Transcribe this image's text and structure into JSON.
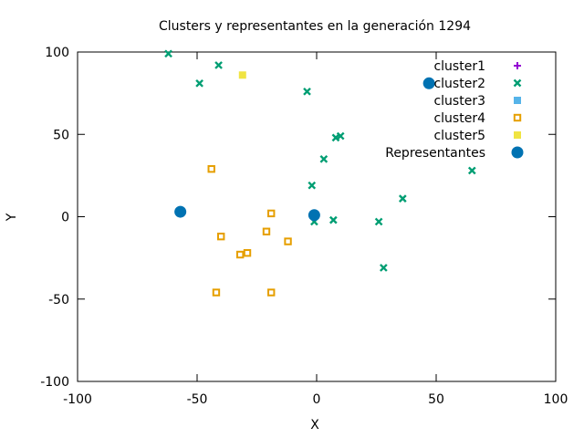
{
  "chart_data": {
    "type": "scatter",
    "title": "Clusters y representantes en la generación 1294",
    "xlabel": "X",
    "ylabel": "Y",
    "xlim": [
      -100,
      100
    ],
    "ylim": [
      -100,
      100
    ],
    "xticks": [
      "-100",
      "-50",
      "0",
      "50",
      "100"
    ],
    "yticks": [
      "-100",
      "-50",
      "0",
      "50",
      "100"
    ],
    "xtick_values": [
      -100,
      -50,
      0,
      50,
      100
    ],
    "ytick_values": [
      -100,
      -50,
      0,
      50,
      100
    ],
    "grid": false,
    "legend_position": "top-right",
    "series": [
      {
        "name": "cluster1",
        "marker": "plus",
        "color": "#9400d3",
        "points": []
      },
      {
        "name": "cluster2",
        "marker": "cross",
        "color": "#009e73",
        "points": [
          [
            -62,
            99
          ],
          [
            -41,
            92
          ],
          [
            -49,
            81
          ],
          [
            -4,
            76
          ],
          [
            8,
            48
          ],
          [
            10,
            49
          ],
          [
            3,
            35
          ],
          [
            -2,
            19
          ],
          [
            65,
            28
          ],
          [
            36,
            11
          ],
          [
            -1,
            -3
          ],
          [
            7,
            -2
          ],
          [
            26,
            -3
          ],
          [
            28,
            -31
          ]
        ]
      },
      {
        "name": "cluster3",
        "marker": "square-filled",
        "color": "#56b4e9",
        "points": []
      },
      {
        "name": "cluster4",
        "marker": "square-open",
        "color": "#e69f00",
        "points": [
          [
            -44,
            29
          ],
          [
            -19,
            2
          ],
          [
            -40,
            -12
          ],
          [
            -21,
            -9
          ],
          [
            -12,
            -15
          ],
          [
            -32,
            -23
          ],
          [
            -29,
            -22
          ],
          [
            -42,
            -46
          ],
          [
            -19,
            -46
          ]
        ]
      },
      {
        "name": "cluster5",
        "marker": "square-filled",
        "color": "#f0e442",
        "points": [
          [
            -31,
            86
          ]
        ]
      },
      {
        "name": "Representantes",
        "marker": "circle",
        "color": "#0072b2",
        "points": [
          [
            47,
            81
          ],
          [
            -57,
            3
          ],
          [
            -1,
            1
          ]
        ]
      }
    ]
  }
}
